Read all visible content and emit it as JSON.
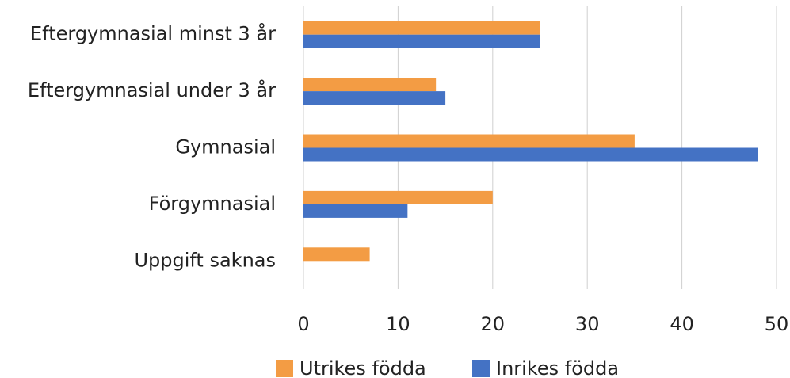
{
  "chart_data": {
    "type": "hbar",
    "categories": [
      "Eftergymnasial minst 3 år",
      "Eftergymnasial under 3 år",
      "Gymnasial",
      "Förgymnasial",
      "Uppgift saknas"
    ],
    "series": [
      {
        "name": "Utrikes födda",
        "color": "#f39c44",
        "values": [
          25,
          14,
          35,
          20,
          7
        ]
      },
      {
        "name": "Inrikes födda",
        "color": "#4472c4",
        "values": [
          25,
          15,
          48,
          11,
          0
        ]
      }
    ],
    "xlim": [
      0,
      50
    ],
    "xticks": [
      0,
      10,
      20,
      30,
      40,
      50
    ],
    "grid": true
  }
}
